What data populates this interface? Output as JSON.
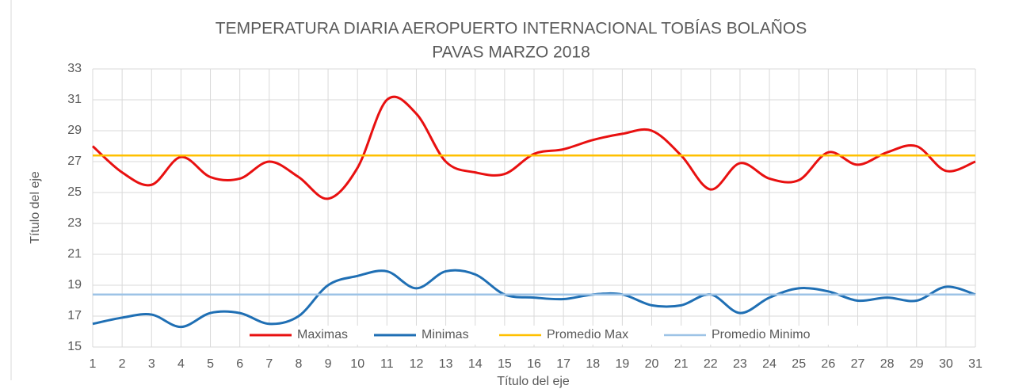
{
  "chart_data": {
    "type": "line",
    "title": [
      "TEMPERATURA DIARIA AEROPUERTO INTERNACIONAL TOBÍAS BOLAÑOS",
      "PAVAS MARZO 2018"
    ],
    "x_label": "Título del eje",
    "y_label": "Título del eje",
    "x": [
      1,
      2,
      3,
      4,
      5,
      6,
      7,
      8,
      9,
      10,
      11,
      12,
      13,
      14,
      15,
      16,
      17,
      18,
      19,
      20,
      21,
      22,
      23,
      24,
      25,
      26,
      27,
      28,
      29,
      30,
      31
    ],
    "xlim": [
      1,
      31
    ],
    "ylim": [
      15,
      33
    ],
    "yticks": [
      15,
      17,
      19,
      21,
      23,
      25,
      27,
      29,
      31,
      33
    ],
    "grid": true,
    "legend": "bottom",
    "smooth": true,
    "series": [
      {
        "name": "Maximas",
        "color": "#e81010",
        "width": 3,
        "values": [
          28.0,
          26.3,
          25.5,
          27.3,
          26.0,
          25.9,
          27.0,
          26.0,
          24.6,
          26.6,
          31.0,
          30.1,
          27.0,
          26.3,
          26.2,
          27.5,
          27.8,
          28.4,
          28.8,
          29.0,
          27.4,
          25.2,
          26.9,
          25.9,
          25.8,
          27.6,
          26.8,
          27.6,
          28.0,
          26.4,
          27.0
        ]
      },
      {
        "name": "Minimas",
        "color": "#1f6fb4",
        "width": 3,
        "values": [
          16.5,
          16.9,
          17.1,
          16.3,
          17.2,
          17.2,
          16.5,
          17.0,
          19.0,
          19.6,
          19.9,
          18.8,
          19.9,
          19.7,
          18.4,
          18.2,
          18.1,
          18.4,
          18.4,
          17.7,
          17.7,
          18.4,
          17.2,
          18.2,
          18.8,
          18.6,
          18.0,
          18.2,
          18.0,
          18.9,
          18.4
        ]
      },
      {
        "name": "Promedio Max",
        "color": "#ffc000",
        "width": 2.5,
        "values": [
          27.4,
          27.4,
          27.4,
          27.4,
          27.4,
          27.4,
          27.4,
          27.4,
          27.4,
          27.4,
          27.4,
          27.4,
          27.4,
          27.4,
          27.4,
          27.4,
          27.4,
          27.4,
          27.4,
          27.4,
          27.4,
          27.4,
          27.4,
          27.4,
          27.4,
          27.4,
          27.4,
          27.4,
          27.4,
          27.4,
          27.4
        ]
      },
      {
        "name": "Promedio Minimo",
        "color": "#9dc3e6",
        "width": 2.5,
        "values": [
          18.4,
          18.4,
          18.4,
          18.4,
          18.4,
          18.4,
          18.4,
          18.4,
          18.4,
          18.4,
          18.4,
          18.4,
          18.4,
          18.4,
          18.4,
          18.4,
          18.4,
          18.4,
          18.4,
          18.4,
          18.4,
          18.4,
          18.4,
          18.4,
          18.4,
          18.4,
          18.4,
          18.4,
          18.4,
          18.4,
          18.4
        ]
      }
    ]
  }
}
